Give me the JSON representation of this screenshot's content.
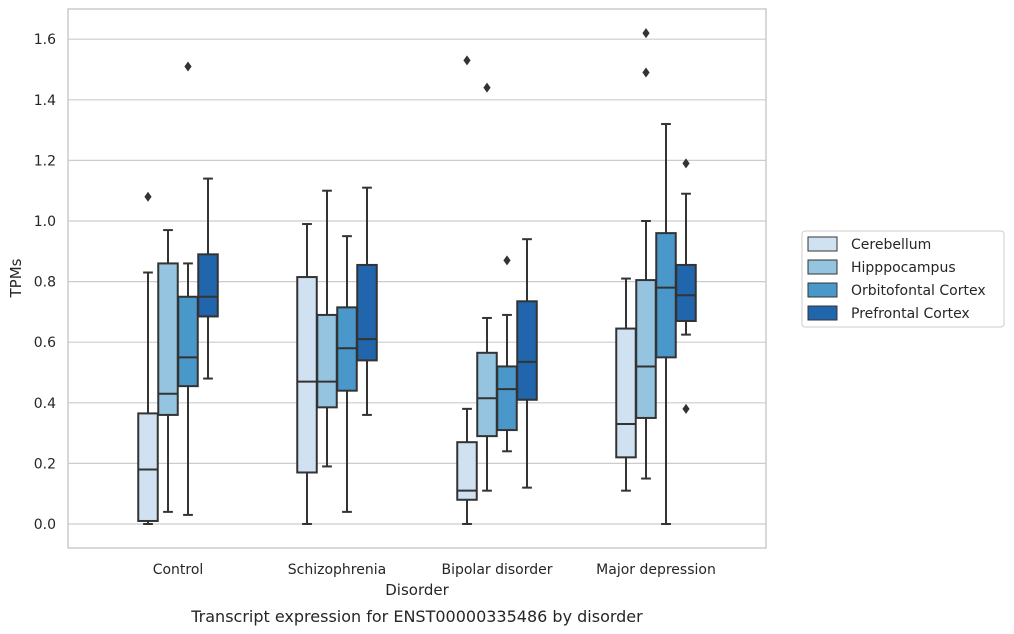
{
  "chart_data": {
    "type": "box",
    "caption": "Transcript expression for ENST00000335486 by disorder",
    "xlabel": "Disorder",
    "ylabel": "TPMs",
    "ylim": [
      -0.08,
      1.7
    ],
    "yticks": [
      "0.0",
      "0.2",
      "0.4",
      "0.6",
      "0.8",
      "1.0",
      "1.2",
      "1.4",
      "1.6"
    ],
    "grid": true,
    "legend_position": "right",
    "categories": [
      "Control",
      "Schizophrenia",
      "Bipolar disorder",
      "Major depression"
    ],
    "series": [
      {
        "name": "Cerebellum",
        "color": "#d0e1f2",
        "boxes": [
          {
            "whisker_low": 0.0,
            "q1": 0.01,
            "median": 0.18,
            "q3": 0.365,
            "whisker_high": 0.83,
            "outliers": [
              1.08
            ]
          },
          {
            "whisker_low": 0.0,
            "q1": 0.17,
            "median": 0.47,
            "q3": 0.815,
            "whisker_high": 0.99,
            "outliers": []
          },
          {
            "whisker_low": 0.0,
            "q1": 0.08,
            "median": 0.11,
            "q3": 0.27,
            "whisker_high": 0.38,
            "outliers": [
              1.53
            ]
          },
          {
            "whisker_low": 0.11,
            "q1": 0.22,
            "median": 0.33,
            "q3": 0.645,
            "whisker_high": 0.81,
            "outliers": []
          }
        ]
      },
      {
        "name": "Hipppocampus",
        "color": "#94c4df",
        "boxes": [
          {
            "whisker_low": 0.04,
            "q1": 0.36,
            "median": 0.43,
            "q3": 0.86,
            "whisker_high": 0.97,
            "outliers": []
          },
          {
            "whisker_low": 0.19,
            "q1": 0.385,
            "median": 0.47,
            "q3": 0.69,
            "whisker_high": 1.1,
            "outliers": []
          },
          {
            "whisker_low": 0.11,
            "q1": 0.29,
            "median": 0.415,
            "q3": 0.565,
            "whisker_high": 0.68,
            "outliers": [
              1.44
            ]
          },
          {
            "whisker_low": 0.15,
            "q1": 0.35,
            "median": 0.52,
            "q3": 0.805,
            "whisker_high": 1.0,
            "outliers": [
              1.49,
              1.62
            ]
          }
        ]
      },
      {
        "name": "Orbitofontal Cortex",
        "color": "#4a98c9",
        "boxes": [
          {
            "whisker_low": 0.03,
            "q1": 0.455,
            "median": 0.55,
            "q3": 0.75,
            "whisker_high": 0.86,
            "outliers": [
              1.51
            ]
          },
          {
            "whisker_low": 0.04,
            "q1": 0.44,
            "median": 0.58,
            "q3": 0.715,
            "whisker_high": 0.95,
            "outliers": []
          },
          {
            "whisker_low": 0.24,
            "q1": 0.31,
            "median": 0.445,
            "q3": 0.52,
            "whisker_high": 0.69,
            "outliers": [
              0.87
            ]
          },
          {
            "whisker_low": 0.0,
            "q1": 0.55,
            "median": 0.78,
            "q3": 0.96,
            "whisker_high": 1.32,
            "outliers": []
          }
        ]
      },
      {
        "name": "Prefrontal Cortex",
        "color": "#2166ac",
        "boxes": [
          {
            "whisker_low": 0.48,
            "q1": 0.685,
            "median": 0.75,
            "q3": 0.89,
            "whisker_high": 1.14,
            "outliers": []
          },
          {
            "whisker_low": 0.36,
            "q1": 0.54,
            "median": 0.61,
            "q3": 0.855,
            "whisker_high": 1.11,
            "outliers": []
          },
          {
            "whisker_low": 0.12,
            "q1": 0.41,
            "median": 0.535,
            "q3": 0.735,
            "whisker_high": 0.94,
            "outliers": []
          },
          {
            "whisker_low": 0.625,
            "q1": 0.67,
            "median": 0.755,
            "q3": 0.855,
            "whisker_high": 1.09,
            "outliers": [
              0.38,
              1.19
            ]
          }
        ]
      }
    ]
  }
}
